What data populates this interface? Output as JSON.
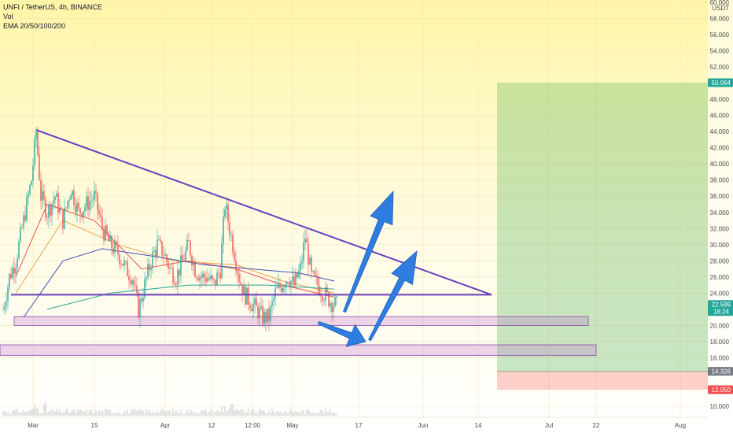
{
  "header": {
    "symbol_line": "UNFI / TetherUS, 4h, BINANCE",
    "vol_label": "Vol",
    "ema_label": "EMA 20/50/100/200"
  },
  "price_axis": {
    "ticks": [
      "60.000",
      "58.000",
      "56.000",
      "54.000",
      "52.000",
      "48.000",
      "46.000",
      "44.000",
      "42.000",
      "40.000",
      "38.000",
      "36.000",
      "34.000",
      "32.000",
      "30.000",
      "28.000",
      "26.000",
      "24.000",
      "20.000",
      "18.000",
      "16.000",
      "10.000"
    ],
    "unit": "USDT",
    "badges": [
      {
        "label": "50.064",
        "price": 50.064,
        "color": "#26a69a"
      },
      {
        "label": "22.599",
        "sublabel": "18:24",
        "price": 22.599,
        "color": "#26a69a"
      },
      {
        "label": "14.326",
        "price": 14.326,
        "color": "#787b86"
      },
      {
        "label": "12.050",
        "price": 12.05,
        "color": "#ef5350"
      }
    ]
  },
  "time_axis": {
    "ticks": [
      "Mar",
      "15",
      "Apr",
      "12",
      "12:00",
      "May",
      "17",
      "Jun",
      "14",
      "Jul",
      "22",
      "Aug"
    ]
  },
  "chart_data": {
    "type": "candlestick",
    "title": "UNFI / TetherUS, 4h, BINANCE",
    "y_unit": "USDT",
    "price_scale": {
      "anchors": [
        {
          "price": 60,
          "y": 3
        },
        {
          "price": 10,
          "y": 516
        }
      ]
    },
    "x_ticks": [
      {
        "label": "Mar",
        "x": 42
      },
      {
        "label": "15",
        "x": 120
      },
      {
        "label": "Apr",
        "x": 210
      },
      {
        "label": "12",
        "x": 269
      },
      {
        "label": "12:00",
        "x": 321
      },
      {
        "label": "May",
        "x": 372
      },
      {
        "label": "17",
        "x": 456
      },
      {
        "label": "Jun",
        "x": 538
      },
      {
        "label": "14",
        "x": 608
      },
      {
        "label": "Jul",
        "x": 698
      },
      {
        "label": "22",
        "x": 758
      },
      {
        "label": "Aug",
        "x": 865
      }
    ],
    "price_key_points": [
      {
        "x": 4,
        "p": 22
      },
      {
        "x": 12,
        "p": 26
      },
      {
        "x": 20,
        "p": 28
      },
      {
        "x": 30,
        "p": 33
      },
      {
        "x": 40,
        "p": 38
      },
      {
        "x": 46,
        "p": 44
      },
      {
        "x": 52,
        "p": 36
      },
      {
        "x": 60,
        "p": 34
      },
      {
        "x": 70,
        "p": 36
      },
      {
        "x": 80,
        "p": 33
      },
      {
        "x": 90,
        "p": 37
      },
      {
        "x": 100,
        "p": 34
      },
      {
        "x": 110,
        "p": 35
      },
      {
        "x": 120,
        "p": 36
      },
      {
        "x": 130,
        "p": 32
      },
      {
        "x": 140,
        "p": 30
      },
      {
        "x": 150,
        "p": 29
      },
      {
        "x": 160,
        "p": 27
      },
      {
        "x": 168,
        "p": 26
      },
      {
        "x": 176,
        "p": 22
      },
      {
        "x": 184,
        "p": 25
      },
      {
        "x": 192,
        "p": 28
      },
      {
        "x": 200,
        "p": 30
      },
      {
        "x": 208,
        "p": 29
      },
      {
        "x": 216,
        "p": 27
      },
      {
        "x": 224,
        "p": 26
      },
      {
        "x": 232,
        "p": 28
      },
      {
        "x": 240,
        "p": 30
      },
      {
        "x": 248,
        "p": 27
      },
      {
        "x": 256,
        "p": 26
      },
      {
        "x": 264,
        "p": 26
      },
      {
        "x": 272,
        "p": 25
      },
      {
        "x": 280,
        "p": 27
      },
      {
        "x": 286,
        "p": 35
      },
      {
        "x": 292,
        "p": 32
      },
      {
        "x": 298,
        "p": 29
      },
      {
        "x": 304,
        "p": 26
      },
      {
        "x": 310,
        "p": 24
      },
      {
        "x": 318,
        "p": 23
      },
      {
        "x": 326,
        "p": 22
      },
      {
        "x": 334,
        "p": 21
      },
      {
        "x": 342,
        "p": 21
      },
      {
        "x": 350,
        "p": 24
      },
      {
        "x": 358,
        "p": 25
      },
      {
        "x": 366,
        "p": 26
      },
      {
        "x": 374,
        "p": 25
      },
      {
        "x": 382,
        "p": 27
      },
      {
        "x": 388,
        "p": 31
      },
      {
        "x": 396,
        "p": 26
      },
      {
        "x": 404,
        "p": 25
      },
      {
        "x": 412,
        "p": 24
      },
      {
        "x": 420,
        "p": 23
      },
      {
        "x": 428,
        "p": 22.5
      }
    ],
    "ema_lines": [
      {
        "name": "EMA 20",
        "color": "#ef5350",
        "points": [
          [
            20,
            26
          ],
          [
            60,
            35
          ],
          [
            120,
            33
          ],
          [
            180,
            27
          ],
          [
            240,
            28
          ],
          [
            300,
            27
          ],
          [
            360,
            25
          ],
          [
            425,
            23.5
          ]
        ]
      },
      {
        "name": "EMA 50",
        "color": "#f0a04b",
        "points": [
          [
            20,
            24
          ],
          [
            80,
            33
          ],
          [
            150,
            30
          ],
          [
            220,
            28
          ],
          [
            300,
            27.5
          ],
          [
            360,
            25.5
          ],
          [
            425,
            24
          ]
        ]
      },
      {
        "name": "EMA 100",
        "color": "#3f51b5",
        "points": [
          [
            30,
            21
          ],
          [
            80,
            28
          ],
          [
            130,
            29.5
          ],
          [
            200,
            28.5
          ],
          [
            260,
            27.5
          ],
          [
            320,
            27
          ],
          [
            380,
            26.5
          ],
          [
            425,
            25.5
          ]
        ]
      },
      {
        "name": "EMA 200",
        "color": "#26a69a",
        "points": [
          [
            60,
            22
          ],
          [
            140,
            24
          ],
          [
            240,
            25
          ],
          [
            340,
            25
          ],
          [
            425,
            24.5
          ]
        ]
      }
    ],
    "drawings": {
      "descending_trendline": {
        "x1": 46,
        "p1": 44.2,
        "x2": 625,
        "p2": 23.8,
        "color": "#6a41c0"
      },
      "horizontal_line": {
        "x1": 14,
        "x2": 625,
        "p": 23.8,
        "color": "#6a41c0"
      },
      "support_zones": [
        {
          "x1": 18,
          "x2": 748,
          "p_top": 21.1,
          "p_bottom": 20.0
        },
        {
          "x1": 0,
          "x2": 758,
          "p_top": 17.6,
          "p_bottom": 16.3
        }
      ],
      "long_position": {
        "x1": 632,
        "x2": 900,
        "entry": 14.326,
        "target": 50.064,
        "stop": 12.05
      },
      "arrows": [
        {
          "from": [
            438,
            396
          ],
          "to": [
            500,
            243
          ],
          "color": "#2f7de1"
        },
        {
          "from": [
            405,
            410
          ],
          "to": [
            465,
            434
          ],
          "color": "#2f7de1"
        },
        {
          "from": [
            470,
            432
          ],
          "to": [
            530,
            319
          ],
          "color": "#2f7de1"
        }
      ]
    }
  }
}
